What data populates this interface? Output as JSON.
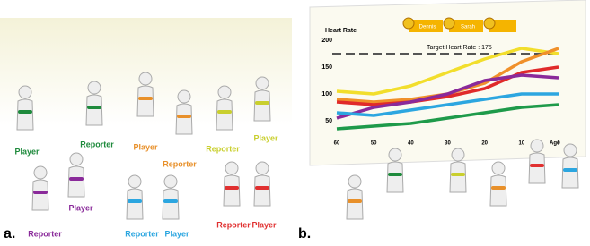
{
  "panel_a": {
    "tag": "a.",
    "labels": [
      {
        "text": "Player",
        "color": "#1e8a3c"
      },
      {
        "text": "Reporter",
        "color": "#1e8a3c"
      },
      {
        "text": "Player",
        "color": "#e8902a"
      },
      {
        "text": "Reporter",
        "color": "#e8902a"
      },
      {
        "text": "Reporter",
        "color": "#c9cf2e"
      },
      {
        "text": "Player",
        "color": "#c9cf2e"
      },
      {
        "text": "Reporter",
        "color": "#8a2a9a"
      },
      {
        "text": "Player",
        "color": "#8a2a9a"
      },
      {
        "text": "Reporter",
        "color": "#2ca6e0"
      },
      {
        "text": "Player",
        "color": "#2ca6e0"
      },
      {
        "text": "Reporter",
        "color": "#e03030"
      },
      {
        "text": "Player",
        "color": "#e03030"
      }
    ]
  },
  "panel_b": {
    "tag": "b.",
    "badges": [
      "Dennis",
      "Sarah"
    ],
    "chart": {
      "type": "line",
      "y_label": "Heart Rate",
      "x_label": "Age",
      "target_label": "Target Heart Rate : 175",
      "target": 175,
      "x": [
        60,
        50,
        40,
        30,
        20,
        10,
        0
      ],
      "xlim": [
        60,
        0
      ],
      "xticks": [
        60,
        50,
        40,
        30,
        20,
        10,
        0
      ],
      "ylim": [
        25,
        200
      ],
      "yticks": [
        200,
        150,
        100,
        50
      ],
      "series": [
        {
          "color": "#f2de2c",
          "values": [
            105,
            100,
            115,
            140,
            165,
            185,
            175
          ]
        },
        {
          "color": "#f0902a",
          "values": [
            90,
            85,
            90,
            100,
            120,
            160,
            185
          ]
        },
        {
          "color": "#e02a2a",
          "values": [
            85,
            80,
            85,
            95,
            110,
            140,
            150
          ]
        },
        {
          "color": "#8a2a9a",
          "values": [
            55,
            75,
            85,
            100,
            125,
            135,
            130
          ]
        },
        {
          "color": "#2ca6e0",
          "values": [
            65,
            60,
            70,
            80,
            90,
            100,
            100
          ]
        },
        {
          "color": "#1e9a4a",
          "values": [
            35,
            40,
            45,
            55,
            65,
            75,
            80
          ]
        }
      ]
    }
  }
}
